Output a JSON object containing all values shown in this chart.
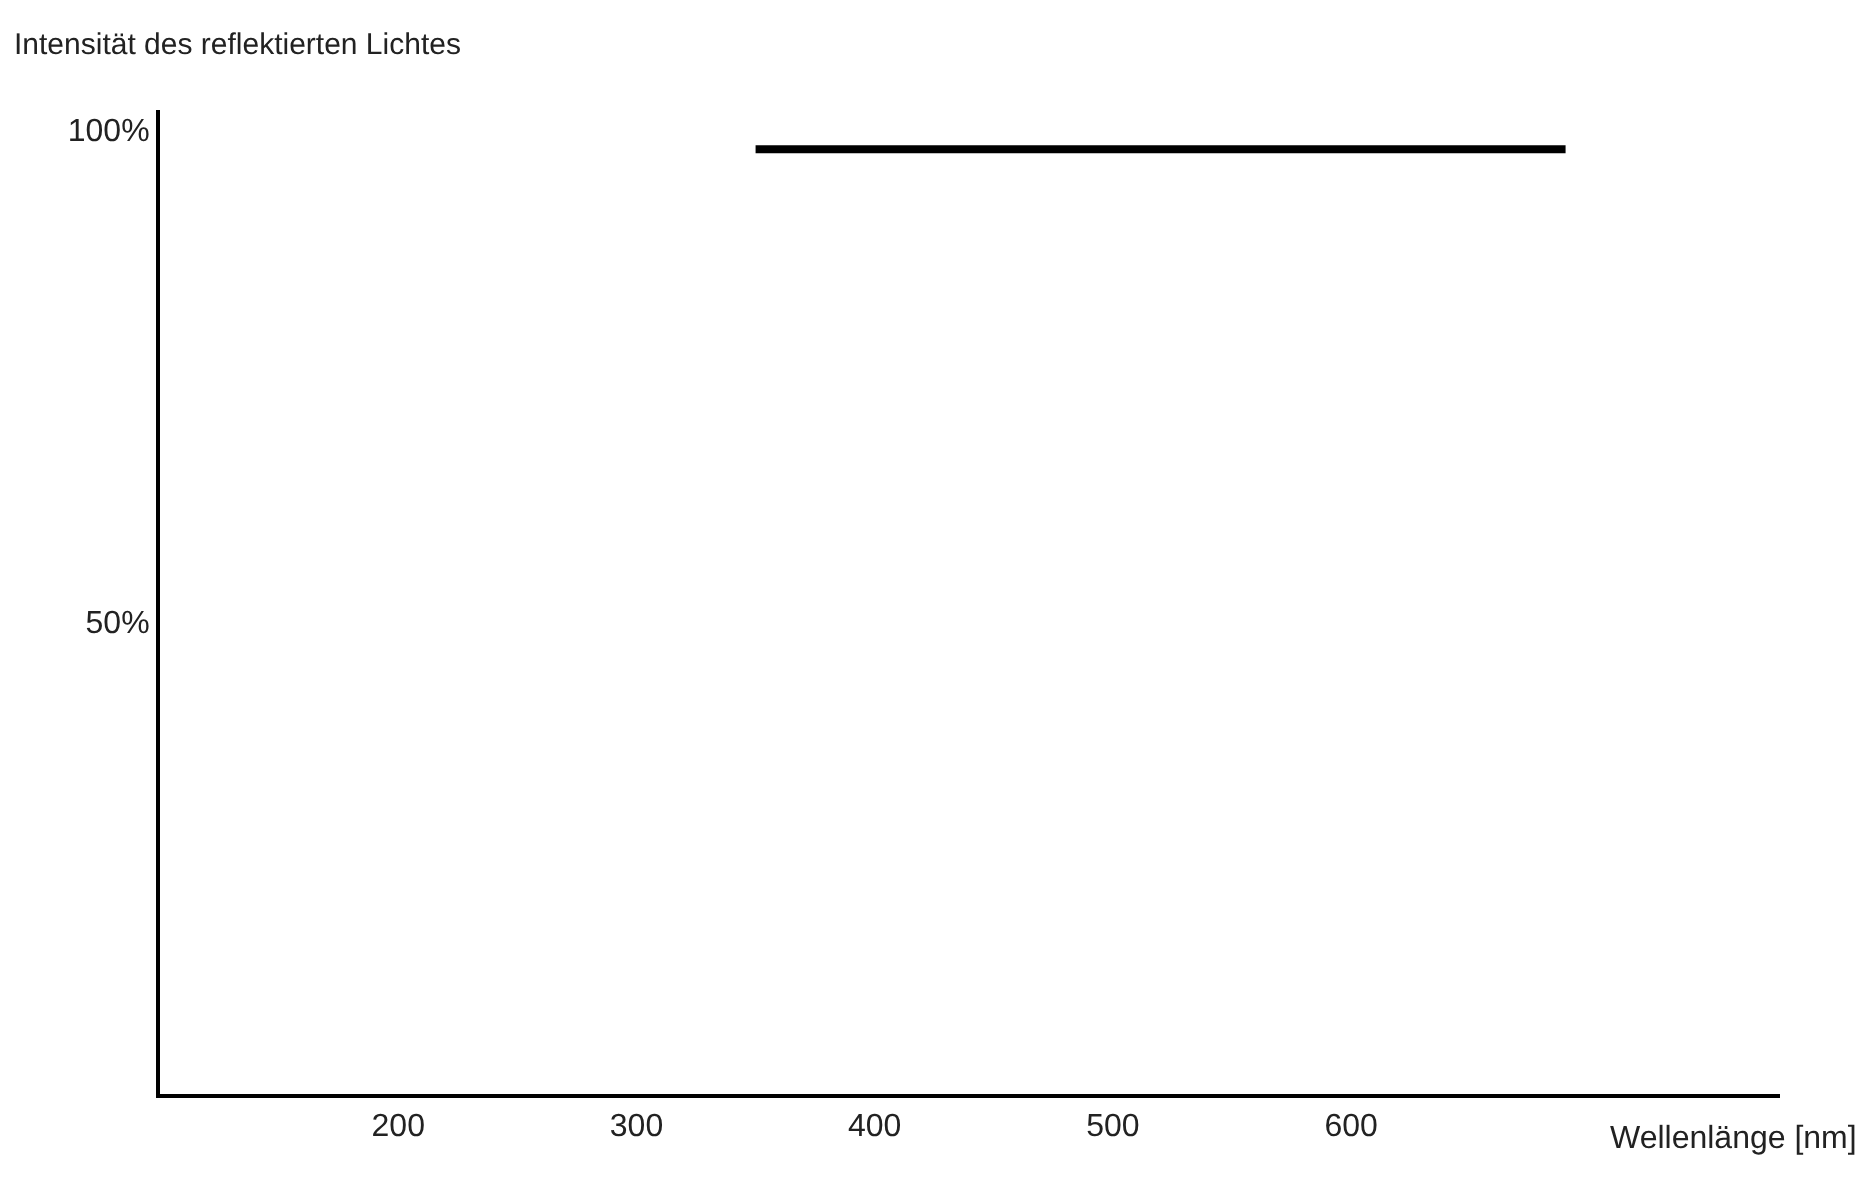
{
  "chart_data": {
    "type": "line",
    "xlabel": "Wellenlänge [nm]",
    "ylabel": "Intensität des reflektierten Lichtes",
    "x": [
      350,
      690
    ],
    "series": [
      {
        "color": "#000000",
        "values": [
          98,
          98
        ]
      }
    ],
    "xlim": [
      100,
      780
    ],
    "ylim": [
      2,
      102
    ],
    "xticks": [
      200,
      300,
      400,
      500,
      600
    ],
    "yticks": [
      {
        "value": 50,
        "label": "50%"
      },
      {
        "value": 100,
        "label": "100%"
      }
    ],
    "marker": "none",
    "line_style": "solid"
  }
}
